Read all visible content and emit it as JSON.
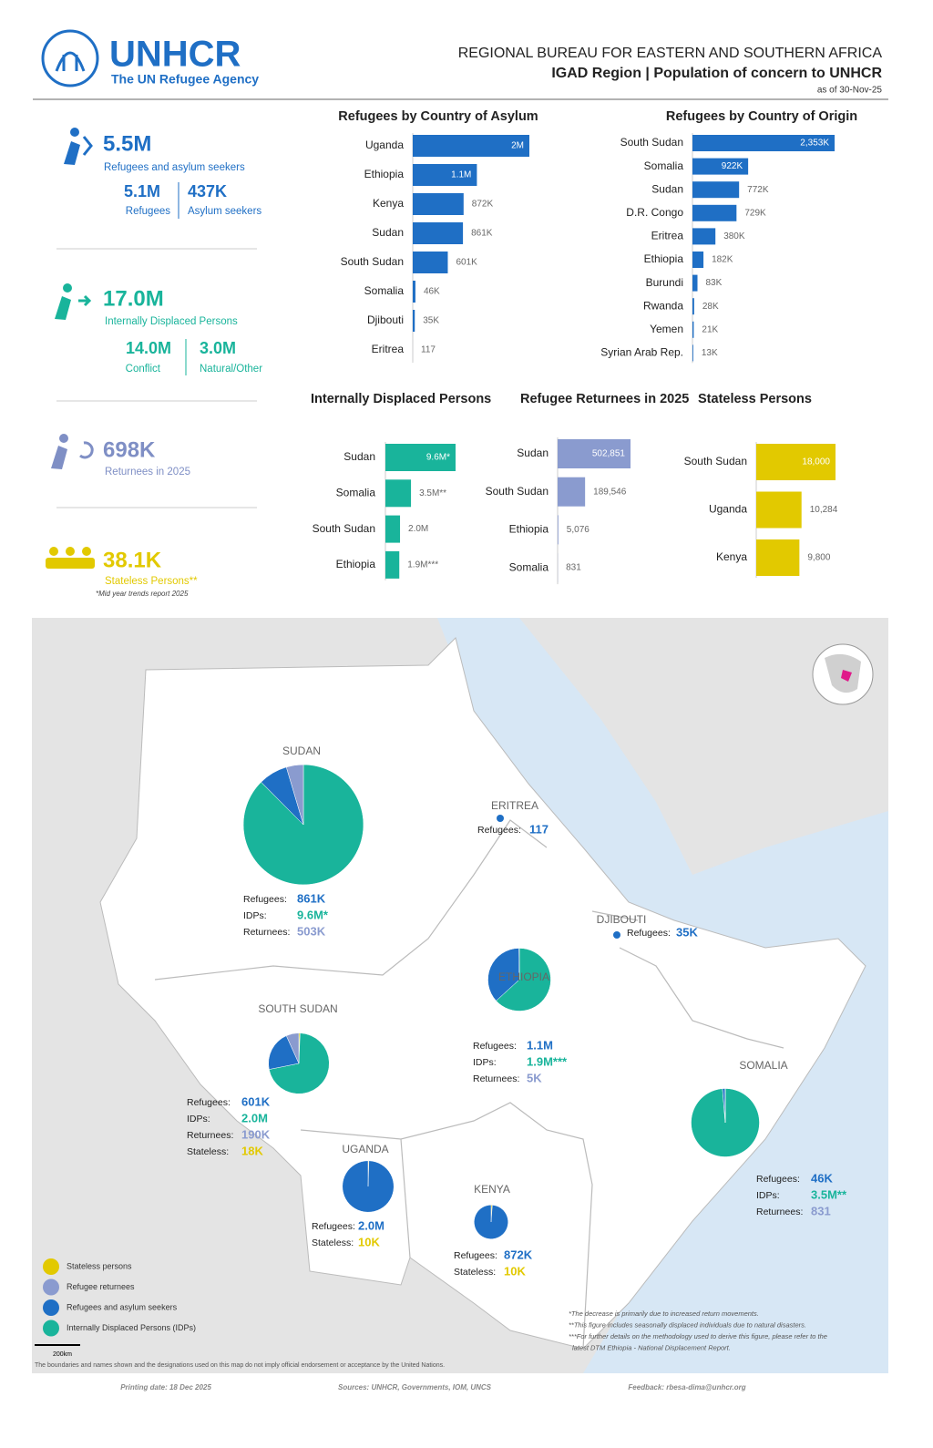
{
  "header": {
    "logo": "UNHCR",
    "logo_subtitle": "The UN Refugee Agency",
    "bureau": "REGIONAL BUREAU FOR EASTERN AND SOUTHERN AFRICA",
    "title": "IGAD Region | Population of concern to UNHCR",
    "date": "as of 30-Nov-25"
  },
  "stats": {
    "refugees_asylum": {
      "value": "5.5M",
      "label": "Refugees and asylum seekers",
      "refugees": {
        "value": "5.1M",
        "label": "Refugees"
      },
      "asylum": {
        "value": "437K",
        "label": "Asylum seekers"
      }
    },
    "idps": {
      "value": "17.0M",
      "label": "Internally Displaced Persons",
      "conflict": {
        "value": "14.0M",
        "label": "Conflict"
      },
      "natural": {
        "value": "3.0M",
        "label": "Natural/Other"
      }
    },
    "returnees": {
      "value": "698K",
      "label": "Returnees in 2025"
    },
    "stateless": {
      "value": "38.1K",
      "label": "Stateless Persons**",
      "note": "*Mid year trends report 2025"
    }
  },
  "chart_data": [
    {
      "type": "bar",
      "title": "Refugees by Country of Asylum",
      "color": "#1f6fc5",
      "categories": [
        "Uganda",
        "Ethiopia",
        "Kenya",
        "Sudan",
        "South Sudan",
        "Somalia",
        "Djibouti",
        "Eritrea"
      ],
      "values": [
        2000000,
        1100000,
        872000,
        861000,
        601000,
        46000,
        35000,
        117
      ],
      "value_labels": [
        "2M",
        "1.1M",
        "872K",
        "861K",
        "601K",
        "46K",
        "35K",
        "117"
      ]
    },
    {
      "type": "bar",
      "title": "Refugees by Country of Origin",
      "color": "#1f6fc5",
      "categories": [
        "South Sudan",
        "Somalia",
        "Sudan",
        "D.R. Congo",
        "Eritrea",
        "Ethiopia",
        "Burundi",
        "Rwanda",
        "Yemen",
        "Syrian Arab Rep."
      ],
      "values": [
        2353000,
        922000,
        772000,
        729000,
        380000,
        182000,
        83000,
        28000,
        21000,
        13000
      ],
      "value_labels": [
        "2,353K",
        "922K",
        "772K",
        "729K",
        "380K",
        "182K",
        "83K",
        "28K",
        "21K",
        "13K"
      ]
    },
    {
      "type": "bar",
      "title": "Internally Displaced Persons",
      "color": "#19b49b",
      "categories": [
        "Sudan",
        "Somalia",
        "South Sudan",
        "Ethiopia"
      ],
      "values": [
        9600000,
        3500000,
        2000000,
        1900000
      ],
      "value_labels": [
        "9.6M*",
        "3.5M**",
        "2.0M",
        "1.9M***"
      ]
    },
    {
      "type": "bar",
      "title": "Refugee Returnees in 2025",
      "color": "#8a9bcf",
      "categories": [
        "Sudan",
        "South Sudan",
        "Ethiopia",
        "Somalia"
      ],
      "values": [
        502851,
        189546,
        5076,
        831
      ],
      "value_labels": [
        "502,851",
        "189,546",
        "5,076",
        "831"
      ]
    },
    {
      "type": "bar",
      "title": "Stateless Persons",
      "color": "#e2c900",
      "categories": [
        "South Sudan",
        "Uganda",
        "Kenya"
      ],
      "values": [
        18000,
        10284,
        9800
      ],
      "value_labels": [
        "18,000",
        "10,284",
        "9,800"
      ]
    }
  ],
  "map": {
    "countries": [
      {
        "name": "SUDAN",
        "items": [
          {
            "label": "Refugees:",
            "value": 861000,
            "value_label": "861K",
            "color": "#1f6fc5"
          },
          {
            "label": "IDPs:",
            "value": 9600000,
            "value_label": "9.6M*",
            "color": "#19b49b"
          },
          {
            "label": "Returnees:",
            "value": 503000,
            "value_label": "503K",
            "color": "#8a9bcf"
          }
        ]
      },
      {
        "name": "ERITREA",
        "items": [
          {
            "label": "Refugees:",
            "value": 117,
            "value_label": "117",
            "color": "#1f6fc5"
          }
        ]
      },
      {
        "name": "DJIBOUTI",
        "items": [
          {
            "label": "Refugees:",
            "value": 35000,
            "value_label": "35K",
            "color": "#1f6fc5"
          }
        ]
      },
      {
        "name": "ETHIOPIA",
        "items": [
          {
            "label": "Refugees:",
            "value": 1100000,
            "value_label": "1.1M",
            "color": "#1f6fc5"
          },
          {
            "label": "IDPs:",
            "value": 1900000,
            "value_label": "1.9M***",
            "color": "#19b49b"
          },
          {
            "label": "Returnees:",
            "value": 5000,
            "value_label": "5K",
            "color": "#8a9bcf"
          }
        ]
      },
      {
        "name": "SOUTH SUDAN",
        "items": [
          {
            "label": "Refugees:",
            "value": 601000,
            "value_label": "601K",
            "color": "#1f6fc5"
          },
          {
            "label": "IDPs:",
            "value": 2000000,
            "value_label": "2.0M",
            "color": "#19b49b"
          },
          {
            "label": "Returnees:",
            "value": 190000,
            "value_label": "190K",
            "color": "#8a9bcf"
          },
          {
            "label": "Stateless:",
            "value": 18000,
            "value_label": "18K",
            "color": "#e2c900"
          }
        ]
      },
      {
        "name": "SOMALIA",
        "items": [
          {
            "label": "Refugees:",
            "value": 46000,
            "value_label": "46K",
            "color": "#1f6fc5"
          },
          {
            "label": "IDPs:",
            "value": 3500000,
            "value_label": "3.5M**",
            "color": "#19b49b"
          },
          {
            "label": "Returnees:",
            "value": 831,
            "value_label": "831",
            "color": "#8a9bcf"
          }
        ]
      },
      {
        "name": "UGANDA",
        "items": [
          {
            "label": "Refugees:",
            "value": 2000000,
            "value_label": "2.0M",
            "color": "#1f6fc5"
          },
          {
            "label": "Stateless:",
            "value": 10000,
            "value_label": "10K",
            "color": "#e2c900"
          }
        ]
      },
      {
        "name": "KENYA",
        "items": [
          {
            "label": "Refugees:",
            "value": 872000,
            "value_label": "872K",
            "color": "#1f6fc5"
          },
          {
            "label": "Stateless:",
            "value": 10000,
            "value_label": "10K",
            "color": "#e2c900"
          }
        ]
      }
    ],
    "legend": [
      {
        "label": "Stateless persons",
        "color": "#e2c900"
      },
      {
        "label": "Refugee returnees",
        "color": "#8a9bcf"
      },
      {
        "label": "Refugees and asylum seekers",
        "color": "#1f6fc5"
      },
      {
        "label": "Internally Displaced Persons (IDPs)",
        "color": "#19b49b"
      }
    ],
    "scale": "200km",
    "disclaimer": "The boundaries and names shown and the designations used on this map do not imply official endorsement or acceptance by the United Nations.",
    "footnotes": [
      "*The decrease is primarily due to increased return movements.",
      "**This figure includes seasonally displaced individuals due to natural disasters.",
      "***For further details on the methodology used to derive this figure, please refer to the",
      "latest DTM Ethiopia - National Displacement Report."
    ]
  },
  "footer": {
    "printing_date": "Printing date: 18 Dec 2025",
    "sources": "Sources: UNHCR, Governments, IOM, UNCS",
    "feedback": "Feedback: rbesa-dima@unhcr.org"
  }
}
